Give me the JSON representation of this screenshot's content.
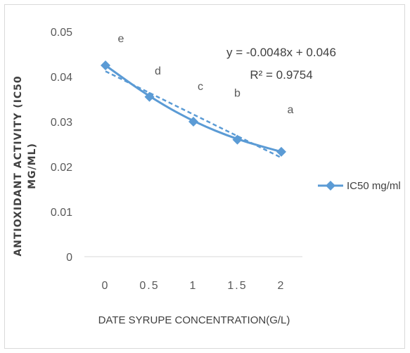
{
  "chart_data": {
    "type": "line",
    "title": "",
    "xlabel": "DATE SYRUPE CONCENTRATION(G/L)",
    "ylabel_lines": [
      "ANTIOXIDANT ACTIVITY (IC50",
      "MG/ML)"
    ],
    "x_ticks": [
      "0",
      "0.5",
      "1",
      "1.5",
      "2"
    ],
    "y_ticks": [
      "0",
      "0.01",
      "0.02",
      "0.03",
      "0.04",
      "0.05"
    ],
    "ylim": [
      0,
      0.05
    ],
    "xlim": [
      0,
      2
    ],
    "grid": false,
    "legend_position": "right",
    "series": [
      {
        "name": "IC50 mg/ml",
        "x": [
          0,
          0.5,
          1,
          1.5,
          2
        ],
        "values": [
          0.0425,
          0.0355,
          0.03,
          0.026,
          0.0233
        ],
        "color": "#5b9bd5",
        "marker": "diamond"
      }
    ],
    "trendline": {
      "style": "dashed",
      "color": "#5b9bd5",
      "x": [
        0,
        0.5,
        1,
        1.5,
        2
      ],
      "values": [
        0.0412,
        0.0364,
        0.0316,
        0.0268,
        0.022
      ],
      "equation": "y = -0.0048x + 0.046",
      "r_squared": "R² = 0.9754"
    },
    "point_letters": [
      "e",
      "d",
      "c",
      "b",
      "a"
    ]
  }
}
